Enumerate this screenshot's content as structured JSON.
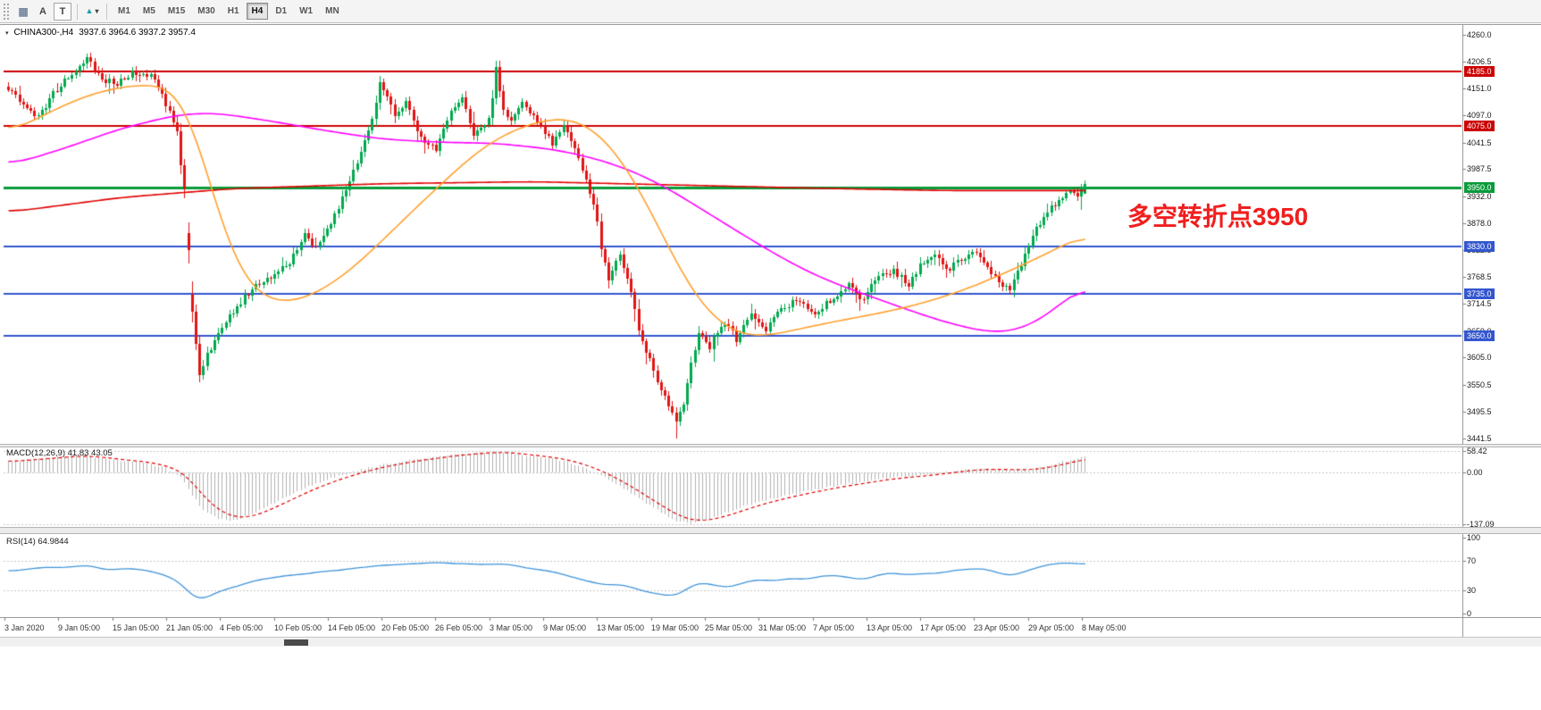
{
  "toolbar": {
    "tools": [
      {
        "label": "A"
      },
      {
        "label": "T"
      }
    ],
    "icons": {
      "grid": "▦",
      "shapes": "▲",
      "caret": "▾"
    },
    "timeframes": [
      "M1",
      "M5",
      "M15",
      "M30",
      "H1",
      "H4",
      "D1",
      "W1",
      "MN"
    ],
    "active_timeframe": "H4"
  },
  "chart": {
    "symbol_title": "CHINA300-,H4",
    "ohlc_text": "3937.6 3964.6 3937.2 3957.4",
    "one_click_icon": "▾",
    "annotation": {
      "text": "多空转折点3950",
      "color": "#f01e1e"
    }
  },
  "chart_data": {
    "type": "candlestick",
    "symbol": "CHINA300-",
    "timeframe": "H4",
    "title": "CHINA300-,H4 3937.6 3964.6 3937.2 3957.4",
    "num_bars": 288,
    "last_ohlc": {
      "open": 3937.6,
      "high": 3964.6,
      "low": 3937.2,
      "close": 3957.4
    },
    "grid": false,
    "price_axis": {
      "ylim": [
        3430,
        4280
      ],
      "ticks": [
        "4260.0",
        "4206.5",
        "4151.0",
        "4097.0",
        "4041.5",
        "3987.5",
        "3932.0",
        "3878.0",
        "3822.5",
        "3768.5",
        "3714.5",
        "3659.0",
        "3605.0",
        "3550.5",
        "3495.5",
        "3441.5"
      ]
    },
    "level_lines": [
      {
        "label": "4185.0",
        "price": 4185.0,
        "color": "#cc0000",
        "width": 2
      },
      {
        "label": "4075.0",
        "price": 4075.0,
        "color": "#cc0000",
        "width": 2
      },
      {
        "label": "3950.0",
        "price": 3950.0,
        "color": "#089b3a",
        "width": 3
      },
      {
        "label": "3830.0",
        "price": 3830.0,
        "color": "#3356cf",
        "width": 2
      },
      {
        "label": "3735.0",
        "price": 3735.0,
        "color": "#3356cf",
        "width": 2
      },
      {
        "label": "3650.0",
        "price": 3650.0,
        "color": "#3356cf",
        "width": 2
      }
    ],
    "colors": {
      "up": "#00a94e",
      "down": "#e01515",
      "macd_hist": "#b0b0b0",
      "macd_signal": "#e00000",
      "rsi_line": "#3e93d9"
    },
    "close_path_anchors": [
      [
        0,
        4155
      ],
      [
        4,
        4120
      ],
      [
        8,
        4095
      ],
      [
        12,
        4140
      ],
      [
        16,
        4175
      ],
      [
        21,
        4215
      ],
      [
        25,
        4170
      ],
      [
        29,
        4160
      ],
      [
        33,
        4185
      ],
      [
        38,
        4180
      ],
      [
        42,
        4120
      ],
      [
        45,
        4060
      ],
      [
        47,
        3945
      ],
      [
        49,
        3700
      ],
      [
        51,
        3565
      ],
      [
        53,
        3610
      ],
      [
        56,
        3655
      ],
      [
        60,
        3700
      ],
      [
        65,
        3745
      ],
      [
        70,
        3765
      ],
      [
        75,
        3800
      ],
      [
        79,
        3855
      ],
      [
        82,
        3830
      ],
      [
        86,
        3880
      ],
      [
        91,
        3960
      ],
      [
        96,
        4060
      ],
      [
        99,
        4160
      ],
      [
        103,
        4100
      ],
      [
        106,
        4125
      ],
      [
        110,
        4050
      ],
      [
        114,
        4030
      ],
      [
        117,
        4090
      ],
      [
        121,
        4135
      ],
      [
        124,
        4060
      ],
      [
        128,
        4085
      ],
      [
        130,
        4190
      ],
      [
        132,
        4110
      ],
      [
        134,
        4085
      ],
      [
        137,
        4125
      ],
      [
        141,
        4080
      ],
      [
        145,
        4040
      ],
      [
        148,
        4075
      ],
      [
        150,
        4050
      ],
      [
        153,
        3990
      ],
      [
        156,
        3920
      ],
      [
        158,
        3830
      ],
      [
        160,
        3760
      ],
      [
        163,
        3815
      ],
      [
        166,
        3740
      ],
      [
        168,
        3655
      ],
      [
        171,
        3605
      ],
      [
        173,
        3560
      ],
      [
        175,
        3525
      ],
      [
        178,
        3470
      ],
      [
        180,
        3515
      ],
      [
        182,
        3590
      ],
      [
        184,
        3650
      ],
      [
        187,
        3628
      ],
      [
        191,
        3680
      ],
      [
        194,
        3640
      ],
      [
        198,
        3692
      ],
      [
        202,
        3662
      ],
      [
        205,
        3700
      ],
      [
        210,
        3722
      ],
      [
        215,
        3692
      ],
      [
        219,
        3722
      ],
      [
        224,
        3752
      ],
      [
        228,
        3722
      ],
      [
        231,
        3762
      ],
      [
        236,
        3782
      ],
      [
        240,
        3752
      ],
      [
        243,
        3792
      ],
      [
        247,
        3812
      ],
      [
        250,
        3782
      ],
      [
        254,
        3802
      ],
      [
        258,
        3822
      ],
      [
        261,
        3792
      ],
      [
        264,
        3752
      ],
      [
        267,
        3742
      ],
      [
        270,
        3792
      ],
      [
        273,
        3852
      ],
      [
        277,
        3902
      ],
      [
        280,
        3922
      ],
      [
        283,
        3942
      ],
      [
        285,
        3938
      ],
      [
        287,
        3957.4
      ]
    ],
    "ma_lines": [
      {
        "name": "ma-slow-red",
        "color": "#e00000",
        "anchors": [
          [
            0,
            3900
          ],
          [
            30,
            3930
          ],
          [
            60,
            3948
          ],
          [
            100,
            3958
          ],
          [
            140,
            3962
          ],
          [
            180,
            3955
          ],
          [
            220,
            3948
          ],
          [
            250,
            3944
          ],
          [
            287,
            3944
          ]
        ]
      },
      {
        "name": "ma-medium-magenta",
        "color": "#ff00ff",
        "anchors": [
          [
            0,
            3995
          ],
          [
            15,
            4030
          ],
          [
            30,
            4070
          ],
          [
            45,
            4098
          ],
          [
            55,
            4102
          ],
          [
            70,
            4085
          ],
          [
            85,
            4065
          ],
          [
            100,
            4048
          ],
          [
            115,
            4042
          ],
          [
            130,
            4040
          ],
          [
            145,
            4028
          ],
          [
            155,
            4012
          ],
          [
            165,
            3988
          ],
          [
            175,
            3952
          ],
          [
            185,
            3905
          ],
          [
            195,
            3858
          ],
          [
            205,
            3812
          ],
          [
            215,
            3772
          ],
          [
            225,
            3742
          ],
          [
            235,
            3715
          ],
          [
            245,
            3688
          ],
          [
            255,
            3666
          ],
          [
            263,
            3655
          ],
          [
            270,
            3662
          ],
          [
            277,
            3692
          ],
          [
            282,
            3722
          ],
          [
            287,
            3762
          ]
        ]
      },
      {
        "name": "ma-fast-orange",
        "color": "#ffa02e",
        "anchors": [
          [
            0,
            4060
          ],
          [
            10,
            4100
          ],
          [
            20,
            4135
          ],
          [
            30,
            4155
          ],
          [
            40,
            4160
          ],
          [
            46,
            4140
          ],
          [
            50,
            4060
          ],
          [
            54,
            3950
          ],
          [
            58,
            3845
          ],
          [
            62,
            3775
          ],
          [
            66,
            3735
          ],
          [
            72,
            3716
          ],
          [
            78,
            3722
          ],
          [
            85,
            3748
          ],
          [
            92,
            3788
          ],
          [
            100,
            3845
          ],
          [
            108,
            3905
          ],
          [
            116,
            3962
          ],
          [
            124,
            4018
          ],
          [
            132,
            4058
          ],
          [
            140,
            4082
          ],
          [
            147,
            4092
          ],
          [
            152,
            4086
          ],
          [
            157,
            4062
          ],
          [
            162,
            4022
          ],
          [
            167,
            3962
          ],
          [
            172,
            3890
          ],
          [
            177,
            3812
          ],
          [
            182,
            3742
          ],
          [
            187,
            3692
          ],
          [
            192,
            3662
          ],
          [
            197,
            3648
          ],
          [
            203,
            3650
          ],
          [
            210,
            3662
          ],
          [
            220,
            3678
          ],
          [
            230,
            3692
          ],
          [
            240,
            3708
          ],
          [
            250,
            3730
          ],
          [
            260,
            3758
          ],
          [
            270,
            3792
          ],
          [
            280,
            3828
          ],
          [
            287,
            3858
          ]
        ]
      }
    ],
    "macd": {
      "label": "MACD(12,26,9) 41.83 43.05",
      "ylim": [
        -145,
        70
      ],
      "ticks": [
        "58.42",
        "0.00",
        "-137.09"
      ],
      "tick_values": [
        58.42,
        0,
        -137.09
      ],
      "anchors": [
        [
          0,
          28
        ],
        [
          6,
          36
        ],
        [
          12,
          42
        ],
        [
          18,
          46
        ],
        [
          24,
          40
        ],
        [
          30,
          32
        ],
        [
          36,
          26
        ],
        [
          42,
          12
        ],
        [
          46,
          -10
        ],
        [
          49,
          -60
        ],
        [
          52,
          -100
        ],
        [
          56,
          -122
        ],
        [
          60,
          -128
        ],
        [
          64,
          -115
        ],
        [
          70,
          -85
        ],
        [
          76,
          -55
        ],
        [
          82,
          -28
        ],
        [
          88,
          -8
        ],
        [
          94,
          8
        ],
        [
          100,
          22
        ],
        [
          106,
          32
        ],
        [
          112,
          40
        ],
        [
          118,
          47
        ],
        [
          124,
          52
        ],
        [
          130,
          57.5
        ],
        [
          135,
          50
        ],
        [
          140,
          44
        ],
        [
          145,
          38
        ],
        [
          150,
          26
        ],
        [
          154,
          12
        ],
        [
          158,
          -8
        ],
        [
          163,
          -35
        ],
        [
          168,
          -68
        ],
        [
          173,
          -100
        ],
        [
          178,
          -128
        ],
        [
          182,
          -136.5
        ],
        [
          186,
          -126
        ],
        [
          191,
          -108
        ],
        [
          196,
          -90
        ],
        [
          202,
          -74
        ],
        [
          208,
          -60
        ],
        [
          215,
          -45
        ],
        [
          222,
          -32
        ],
        [
          229,
          -22
        ],
        [
          236,
          -13
        ],
        [
          243,
          -6
        ],
        [
          250,
          2
        ],
        [
          256,
          9
        ],
        [
          262,
          11
        ],
        [
          266,
          7
        ],
        [
          270,
          6
        ],
        [
          274,
          12
        ],
        [
          278,
          22
        ],
        [
          282,
          32
        ],
        [
          287,
          41.83
        ]
      ]
    },
    "rsi": {
      "label": "RSI(14) 64.9844",
      "ylim": [
        -5,
        105
      ],
      "ticks": [
        "100",
        "70",
        "30",
        "0"
      ],
      "tick_values": [
        100,
        70,
        30,
        0
      ],
      "levels": [
        70,
        30
      ],
      "anchors": [
        [
          0,
          55
        ],
        [
          5,
          58
        ],
        [
          10,
          61
        ],
        [
          15,
          60
        ],
        [
          21,
          65
        ],
        [
          26,
          57
        ],
        [
          31,
          60
        ],
        [
          36,
          58
        ],
        [
          42,
          50
        ],
        [
          46,
          42
        ],
        [
          49,
          22
        ],
        [
          51,
          15
        ],
        [
          54,
          24
        ],
        [
          58,
          32
        ],
        [
          63,
          40
        ],
        [
          70,
          47
        ],
        [
          78,
          52
        ],
        [
          86,
          57
        ],
        [
          94,
          61
        ],
        [
          102,
          63
        ],
        [
          110,
          66
        ],
        [
          118,
          67
        ],
        [
          126,
          64
        ],
        [
          132,
          66
        ],
        [
          138,
          60
        ],
        [
          144,
          56
        ],
        [
          150,
          48
        ],
        [
          155,
          42
        ],
        [
          160,
          35
        ],
        [
          163,
          41
        ],
        [
          166,
          34
        ],
        [
          170,
          28
        ],
        [
          174,
          25
        ],
        [
          178,
          22
        ],
        [
          181,
          33
        ],
        [
          184,
          42
        ],
        [
          188,
          37
        ],
        [
          192,
          33
        ],
        [
          196,
          40
        ],
        [
          200,
          45
        ],
        [
          204,
          41
        ],
        [
          208,
          47
        ],
        [
          212,
          44
        ],
        [
          216,
          49
        ],
        [
          220,
          52
        ],
        [
          224,
          47
        ],
        [
          228,
          44
        ],
        [
          232,
          51
        ],
        [
          236,
          54
        ],
        [
          240,
          49
        ],
        [
          244,
          55
        ],
        [
          248,
          52
        ],
        [
          252,
          57
        ],
        [
          256,
          59
        ],
        [
          260,
          61
        ],
        [
          264,
          52
        ],
        [
          267,
          48
        ],
        [
          271,
          56
        ],
        [
          275,
          62
        ],
        [
          279,
          65
        ],
        [
          282,
          68
        ],
        [
          285,
          66
        ],
        [
          287,
          64.98
        ]
      ]
    },
    "time_axis": [
      "3 Jan 2020",
      "9 Jan 05:00",
      "15 Jan 05:00",
      "21 Jan 05:00",
      "4 Feb 05:00",
      "10 Feb 05:00",
      "14 Feb 05:00",
      "20 Feb 05:00",
      "26 Feb 05:00",
      "3 Mar 05:00",
      "9 Mar 05:00",
      "13 Mar 05:00",
      "19 Mar 05:00",
      "25 Mar 05:00",
      "31 Mar 05:00",
      "7 Apr 05:00",
      "13 Apr 05:00",
      "17 Apr 05:00",
      "23 Apr 05:00",
      "29 Apr 05:00",
      "8 May 05:00"
    ]
  }
}
